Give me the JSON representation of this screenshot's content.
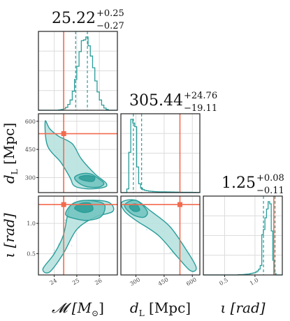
{
  "colors": {
    "contour": "#2a9d9a",
    "fill_outer": "#b8e2df",
    "fill_mid": "#6fc3be",
    "fill_inner": "#2e9c98",
    "truth": "#f26b4f",
    "hist": "#2a9d9a"
  },
  "chart_data": {
    "type": "corner",
    "params": [
      {
        "key": "mc",
        "label_base": "𝓜 [M",
        "label_sub": "⊙",
        "label_end": "]",
        "range": [
          23.3,
          26.8
        ],
        "ticks": [
          24,
          25,
          26
        ],
        "tick_labels": [
          "24",
          "25",
          "26"
        ],
        "truth": 24.42,
        "median": 25.22,
        "q_lo": 24.95,
        "q_hi": 25.47,
        "title_value": "25.22",
        "title_plus": "+0.25",
        "title_minus": "−0.27",
        "hist": [
          0,
          0,
          0,
          0,
          0,
          0,
          0,
          0,
          0,
          0.005,
          0.01,
          0.02,
          0.04,
          0.08,
          0.14,
          0.26,
          0.42,
          0.6,
          0.8,
          0.95,
          0.96,
          1.0,
          0.88,
          0.74,
          0.58,
          0.4,
          0.25,
          0.14,
          0.07,
          0.03,
          0.01,
          0,
          0,
          0,
          0
        ]
      },
      {
        "key": "dl",
        "label_base": "d",
        "label_sub": "L",
        "label_end": " [Mpc]",
        "range": [
          220,
          640
        ],
        "ticks": [
          300,
          450,
          600
        ],
        "tick_labels": [
          "300",
          "450",
          "600"
        ],
        "truth": 534,
        "median": 305.44,
        "q_lo": 286.33,
        "q_hi": 330.2,
        "title_value": "305.44",
        "title_plus": "+24.76",
        "title_minus": "−19.11",
        "hist": [
          0,
          0,
          0,
          0.05,
          0.55,
          1.0,
          0.95,
          0.9,
          0.35,
          0.12,
          0.06,
          0.04,
          0.03,
          0.025,
          0.02,
          0.018,
          0.015,
          0.013,
          0.012,
          0.011,
          0.01,
          0.01,
          0.01,
          0.009,
          0.009,
          0.008,
          0.008,
          0.007,
          0.007,
          0.006,
          0.006,
          0.005,
          0.005,
          0.005,
          0.004,
          0.004,
          0.003,
          0.003,
          0.002,
          0.002
        ]
      },
      {
        "key": "iota",
        "label_base": "ι [rad]",
        "label_sub": "",
        "label_end": "",
        "range": [
          0.15,
          1.45
        ],
        "ticks": [
          0.5,
          1.0
        ],
        "tick_labels": [
          "0.5",
          "1.0"
        ],
        "truth": 1.31,
        "median": 1.25,
        "q_lo": 1.14,
        "q_hi": 1.33,
        "title_value": "1.25",
        "title_plus": "+0.08",
        "title_minus": "−0.11",
        "hist": [
          0,
          0,
          0,
          0,
          0,
          0,
          0,
          0,
          0,
          0,
          0,
          0,
          0,
          0,
          0,
          0,
          0,
          0,
          0,
          0,
          0,
          0,
          0.003,
          0.004,
          0.005,
          0.006,
          0.008,
          0.01,
          0.012,
          0.015,
          0.02,
          0.025,
          0.03,
          0.04,
          0.055,
          0.08,
          0.13,
          0.55,
          0.62,
          0.78,
          0.9,
          1.0,
          0.97,
          0.6,
          0.2,
          0.02,
          0,
          0,
          0,
          0
        ]
      }
    ],
    "contours": {
      "mc_dl": {
        "levels": [
          [
            [
              23.6,
              600
            ],
            [
              23.8,
              560
            ],
            [
              24.2,
              520
            ],
            [
              24.8,
              480
            ],
            [
              25.2,
              400
            ],
            [
              25.8,
              320
            ],
            [
              26.3,
              270
            ],
            [
              26.2,
              248
            ],
            [
              25.5,
              240
            ],
            [
              24.9,
              255
            ],
            [
              24.7,
              300
            ],
            [
              24.3,
              380
            ],
            [
              23.7,
              470
            ]
          ],
          [
            [
              24.9,
              300
            ],
            [
              25.1,
              270
            ],
            [
              25.5,
              250
            ],
            [
              26.0,
              250
            ],
            [
              26.2,
              270
            ],
            [
              25.9,
              300
            ],
            [
              25.6,
              320
            ],
            [
              25.2,
              320
            ]
          ],
          [
            [
              25.1,
              300
            ],
            [
              25.3,
              285
            ],
            [
              25.7,
              280
            ],
            [
              25.8,
              300
            ],
            [
              25.6,
              310
            ],
            [
              25.3,
              310
            ]
          ]
        ]
      },
      "mc_iota": {
        "levels": [
          [
            [
              23.5,
              0.25
            ],
            [
              24.0,
              0.5
            ],
            [
              24.4,
              0.8
            ],
            [
              24.6,
              1.15
            ],
            [
              24.8,
              1.32
            ],
            [
              25.5,
              1.38
            ],
            [
              26.4,
              1.35
            ],
            [
              26.6,
              1.2
            ],
            [
              25.8,
              1.1
            ],
            [
              25.0,
              0.9
            ],
            [
              24.4,
              0.5
            ],
            [
              23.8,
              0.2
            ]
          ],
          [
            [
              24.5,
              1.15
            ],
            [
              24.8,
              1.32
            ],
            [
              25.4,
              1.38
            ],
            [
              26.2,
              1.32
            ],
            [
              26.1,
              1.12
            ],
            [
              25.5,
              1.05
            ],
            [
              24.9,
              1.08
            ]
          ],
          [
            [
              24.9,
              1.25
            ],
            [
              25.2,
              1.33
            ],
            [
              25.6,
              1.33
            ],
            [
              25.7,
              1.22
            ],
            [
              25.3,
              1.18
            ]
          ]
        ]
      },
      "dl_iota": {
        "levels": [
          [
            [
              225,
              1.35
            ],
            [
              300,
              1.38
            ],
            [
              380,
              1.2
            ],
            [
              480,
              0.95
            ],
            [
              560,
              0.6
            ],
            [
              620,
              0.28
            ],
            [
              590,
              0.22
            ],
            [
              520,
              0.45
            ],
            [
              420,
              0.8
            ],
            [
              300,
              1.05
            ],
            [
              240,
              1.2
            ]
          ],
          [
            [
              240,
              1.3
            ],
            [
              300,
              1.38
            ],
            [
              360,
              1.2
            ],
            [
              340,
              1.1
            ],
            [
              280,
              1.15
            ]
          ],
          [
            [
              265,
              1.28
            ],
            [
              300,
              1.32
            ],
            [
              320,
              1.22
            ],
            [
              290,
              1.2
            ]
          ]
        ]
      }
    },
    "truth_marker": "square"
  }
}
